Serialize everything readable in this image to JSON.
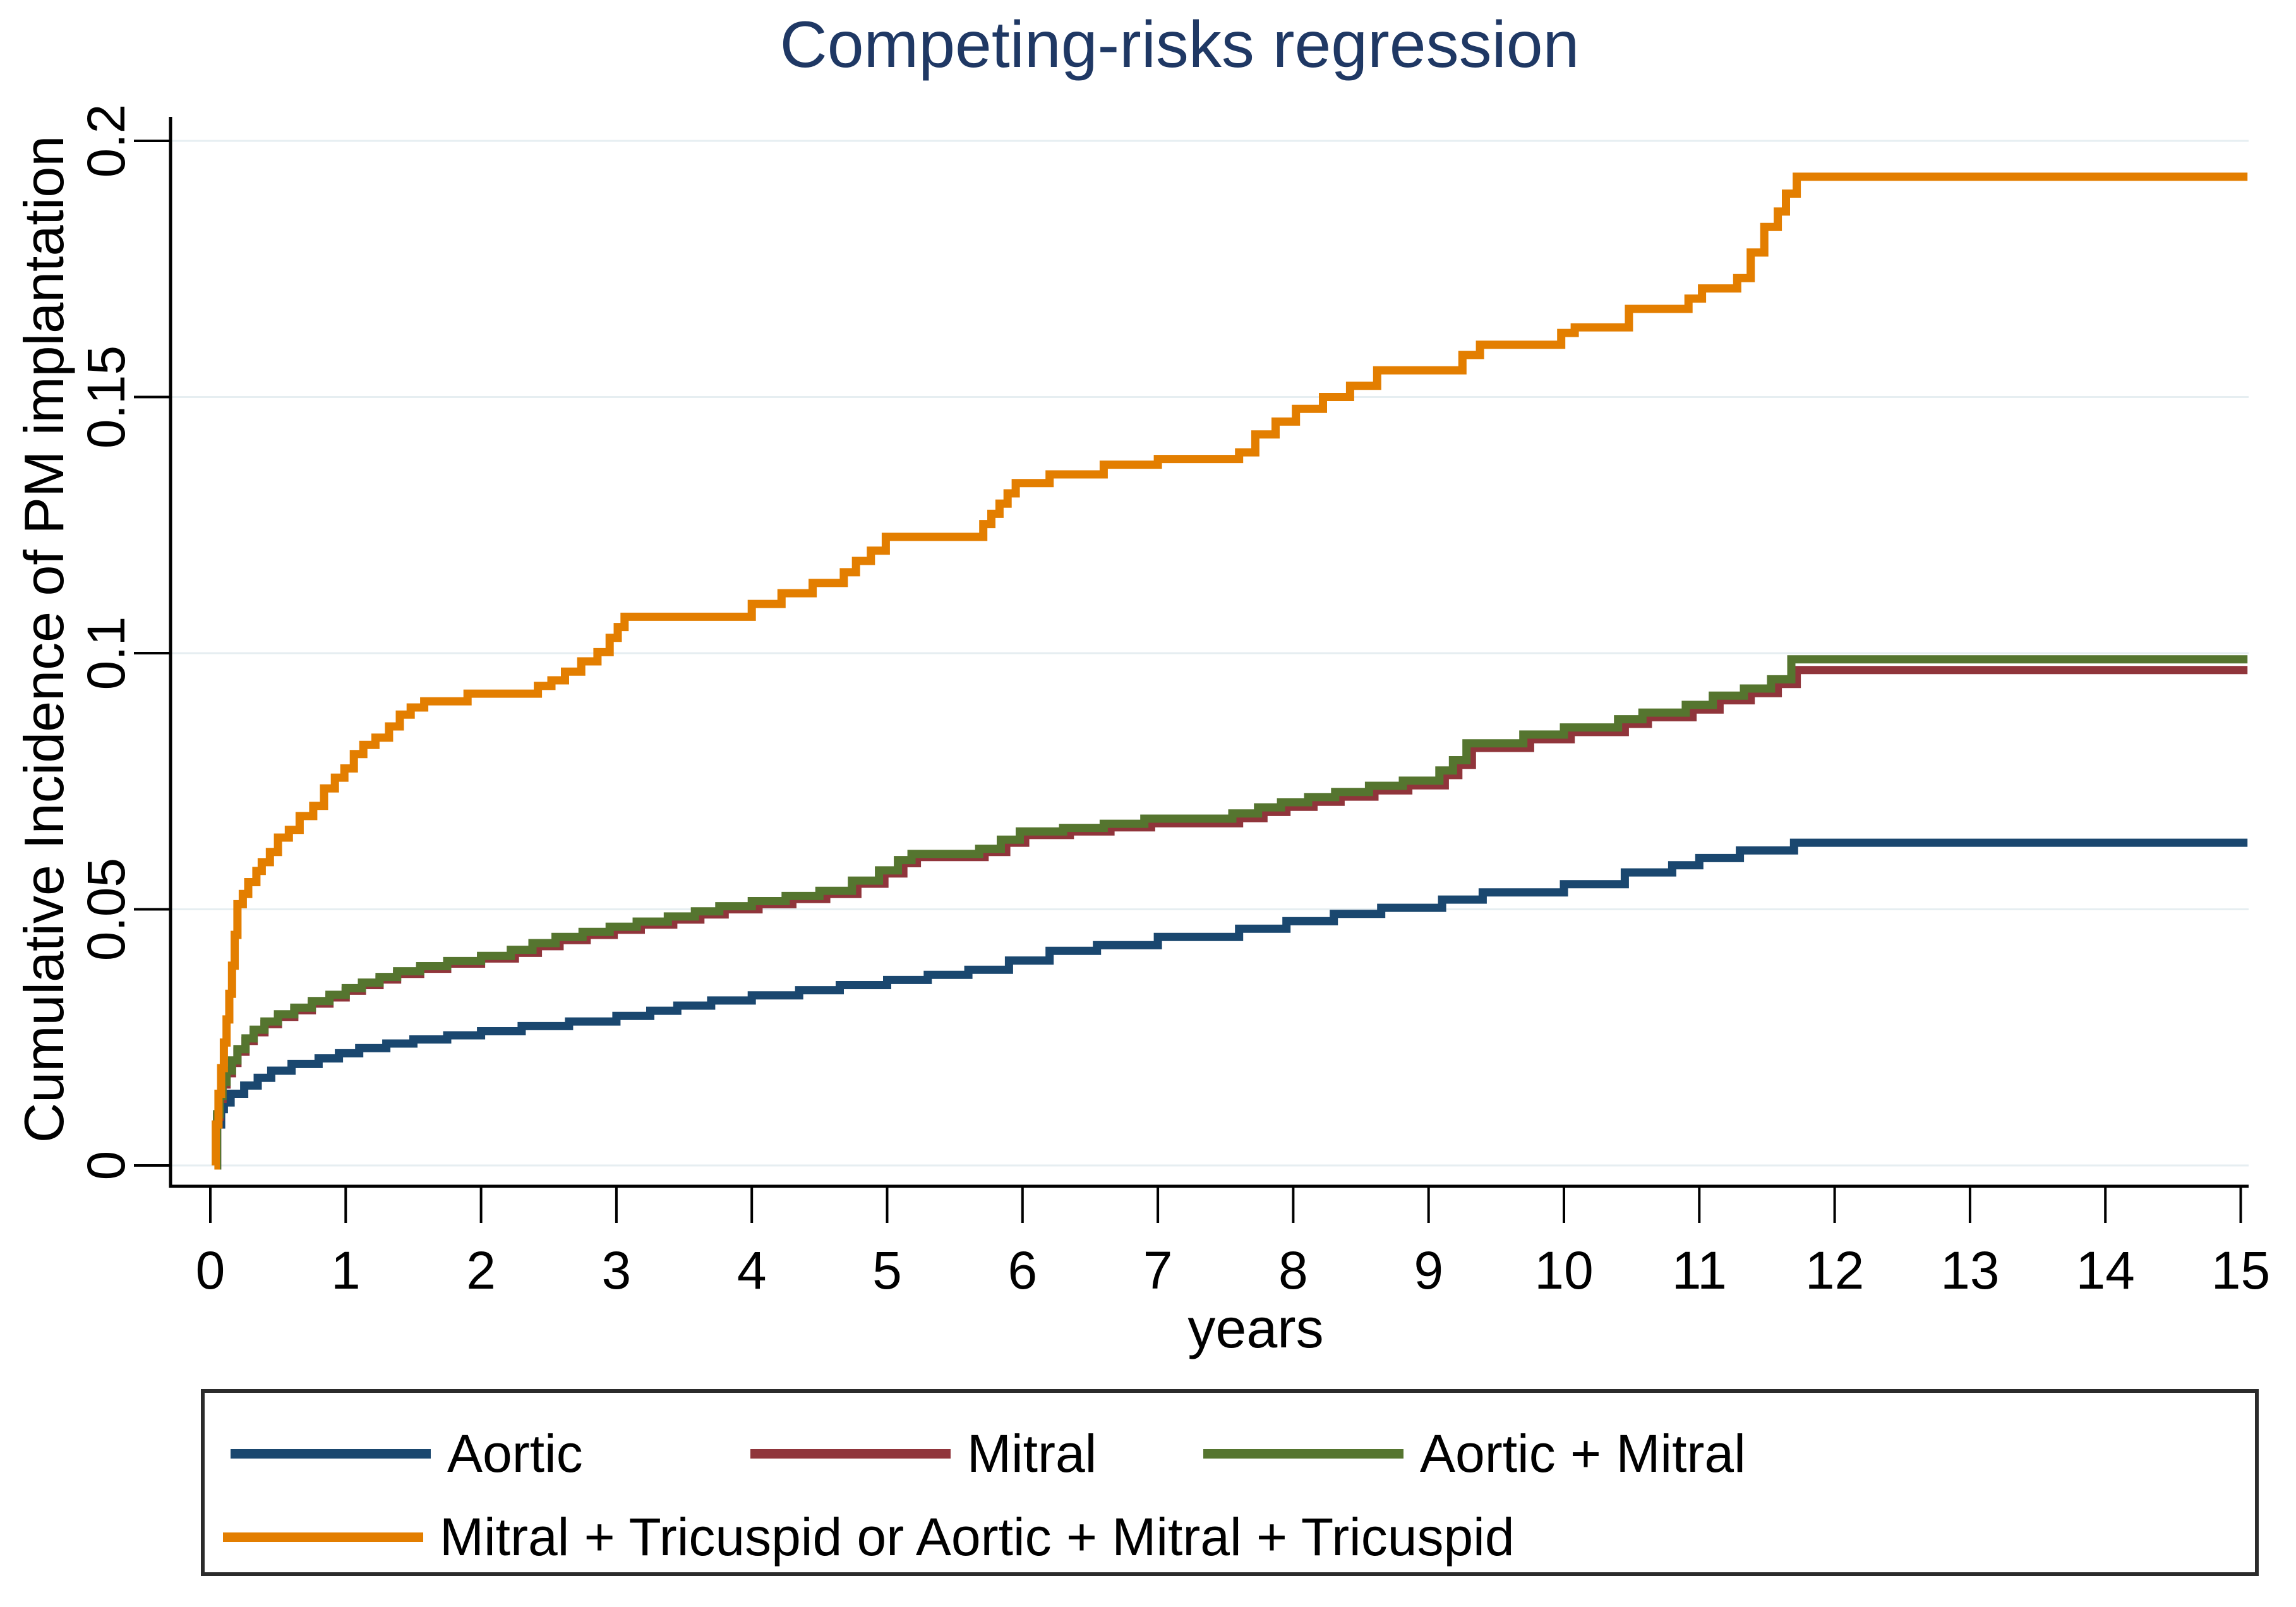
{
  "chart_data": {
    "type": "line",
    "subtype": "step-after cumulative incidence (competing-risks regression)",
    "title": "Competing-risks regression",
    "xlabel": "years",
    "ylabel": "Cumulative Incidence of PM implantation",
    "xlim": [
      0,
      15
    ],
    "ylim": [
      0,
      0.2
    ],
    "xticks": [
      "0",
      "1",
      "2",
      "3",
      "4",
      "5",
      "6",
      "7",
      "8",
      "9",
      "10",
      "11",
      "12",
      "13",
      "14",
      "15"
    ],
    "yticks": [
      {
        "v": 0,
        "label": "0"
      },
      {
        "v": 0.05,
        "label": "0.05"
      },
      {
        "v": 0.1,
        "label": "0.1"
      },
      {
        "v": 0.15,
        "label": "0.15"
      },
      {
        "v": 0.2,
        "label": "0.2"
      }
    ],
    "grid": "horizontal, light blue-gray, on",
    "ytick_label_rotation": -90,
    "legend_position": "boxed, below x-axis, two rows",
    "colors": {
      "title": "#1f3864",
      "axis": "#000000",
      "grid": "#e6eef1",
      "legend_border": "#2b2b2b",
      "background": "#ffffff"
    },
    "series": [
      {
        "name": "Aortic",
        "color": "#1a476f",
        "final_value": 0.063,
        "points": [
          [
            0.04,
            0
          ],
          [
            0.05,
            0.008
          ],
          [
            0.08,
            0.011
          ],
          [
            0.1,
            0.0123
          ],
          [
            0.15,
            0.014
          ],
          [
            0.25,
            0.0156
          ],
          [
            0.35,
            0.0171
          ],
          [
            0.45,
            0.0185
          ],
          [
            0.6,
            0.0198
          ],
          [
            0.8,
            0.0209
          ],
          [
            0.95,
            0.0219
          ],
          [
            1.1,
            0.0229
          ],
          [
            1.3,
            0.0238
          ],
          [
            1.5,
            0.0246
          ],
          [
            1.75,
            0.0254
          ],
          [
            2.0,
            0.0262
          ],
          [
            2.3,
            0.0272
          ],
          [
            2.65,
            0.0281
          ],
          [
            3.0,
            0.0292
          ],
          [
            3.25,
            0.0302
          ],
          [
            3.45,
            0.0312
          ],
          [
            3.7,
            0.0322
          ],
          [
            4.0,
            0.0332
          ],
          [
            4.35,
            0.0342
          ],
          [
            4.65,
            0.0352
          ],
          [
            5.0,
            0.0362
          ],
          [
            5.3,
            0.0372
          ],
          [
            5.6,
            0.0382
          ],
          [
            5.9,
            0.04
          ],
          [
            6.2,
            0.0419
          ],
          [
            6.55,
            0.043
          ],
          [
            7.0,
            0.0446
          ],
          [
            7.6,
            0.0462
          ],
          [
            7.95,
            0.0477
          ],
          [
            8.3,
            0.0491
          ],
          [
            8.65,
            0.0503
          ],
          [
            9.1,
            0.0519
          ],
          [
            9.4,
            0.0533
          ],
          [
            10.0,
            0.0549
          ],
          [
            10.45,
            0.0572
          ],
          [
            10.8,
            0.0586
          ],
          [
            11.0,
            0.06
          ],
          [
            11.3,
            0.0615
          ],
          [
            11.7,
            0.063
          ],
          [
            15.05,
            0.063
          ]
        ]
      },
      {
        "name": "Mitral",
        "color": "#90353b",
        "final_value": 0.0967,
        "points": [
          [
            0.04,
            0
          ],
          [
            0.05,
            0.0095
          ],
          [
            0.07,
            0.013
          ],
          [
            0.09,
            0.0158
          ],
          [
            0.12,
            0.018
          ],
          [
            0.16,
            0.02
          ],
          [
            0.2,
            0.0222
          ],
          [
            0.26,
            0.0243
          ],
          [
            0.32,
            0.026
          ],
          [
            0.4,
            0.0276
          ],
          [
            0.5,
            0.029
          ],
          [
            0.62,
            0.0303
          ],
          [
            0.75,
            0.0316
          ],
          [
            0.88,
            0.0328
          ],
          [
            1.0,
            0.0341
          ],
          [
            1.12,
            0.0352
          ],
          [
            1.25,
            0.0363
          ],
          [
            1.38,
            0.0374
          ],
          [
            1.55,
            0.0384
          ],
          [
            1.75,
            0.0394
          ],
          [
            2.0,
            0.0404
          ],
          [
            2.25,
            0.0415
          ],
          [
            2.42,
            0.0428
          ],
          [
            2.58,
            0.044
          ],
          [
            2.78,
            0.045
          ],
          [
            2.98,
            0.046
          ],
          [
            3.18,
            0.047
          ],
          [
            3.42,
            0.048
          ],
          [
            3.62,
            0.049
          ],
          [
            3.8,
            0.05
          ],
          [
            4.05,
            0.051
          ],
          [
            4.3,
            0.052
          ],
          [
            4.55,
            0.053
          ],
          [
            4.78,
            0.055
          ],
          [
            4.98,
            0.057
          ],
          [
            5.12,
            0.059
          ],
          [
            5.22,
            0.0602
          ],
          [
            5.72,
            0.0612
          ],
          [
            5.88,
            0.063
          ],
          [
            6.02,
            0.0645
          ],
          [
            6.35,
            0.0652
          ],
          [
            6.65,
            0.066
          ],
          [
            6.95,
            0.0668
          ],
          [
            7.6,
            0.0678
          ],
          [
            7.78,
            0.069
          ],
          [
            7.95,
            0.07
          ],
          [
            8.15,
            0.071
          ],
          [
            8.35,
            0.072
          ],
          [
            8.6,
            0.0732
          ],
          [
            8.85,
            0.0742
          ],
          [
            9.12,
            0.0762
          ],
          [
            9.22,
            0.0782
          ],
          [
            9.32,
            0.0815
          ],
          [
            9.75,
            0.0832
          ],
          [
            10.05,
            0.0846
          ],
          [
            10.45,
            0.0862
          ],
          [
            10.62,
            0.0875
          ],
          [
            10.95,
            0.089
          ],
          [
            11.15,
            0.0908
          ],
          [
            11.38,
            0.0922
          ],
          [
            11.58,
            0.094
          ],
          [
            11.72,
            0.0967
          ],
          [
            15.05,
            0.0967
          ]
        ]
      },
      {
        "name": "Aortic + Mitral",
        "color": "#55752f",
        "final_value": 0.0988,
        "points": [
          [
            0.04,
            0
          ],
          [
            0.05,
            0.01
          ],
          [
            0.07,
            0.0136
          ],
          [
            0.09,
            0.0163
          ],
          [
            0.12,
            0.0185
          ],
          [
            0.16,
            0.0205
          ],
          [
            0.2,
            0.0227
          ],
          [
            0.26,
            0.0248
          ],
          [
            0.32,
            0.0265
          ],
          [
            0.4,
            0.0281
          ],
          [
            0.5,
            0.0295
          ],
          [
            0.62,
            0.0308
          ],
          [
            0.75,
            0.0321
          ],
          [
            0.88,
            0.0333
          ],
          [
            1.0,
            0.0346
          ],
          [
            1.12,
            0.0357
          ],
          [
            1.25,
            0.0368
          ],
          [
            1.38,
            0.0379
          ],
          [
            1.55,
            0.0389
          ],
          [
            1.75,
            0.0399
          ],
          [
            2.0,
            0.0409
          ],
          [
            2.22,
            0.0421
          ],
          [
            2.38,
            0.0434
          ],
          [
            2.55,
            0.0446
          ],
          [
            2.75,
            0.0456
          ],
          [
            2.95,
            0.0466
          ],
          [
            3.15,
            0.0476
          ],
          [
            3.38,
            0.0486
          ],
          [
            3.58,
            0.0496
          ],
          [
            3.76,
            0.0506
          ],
          [
            4.0,
            0.0516
          ],
          [
            4.25,
            0.0526
          ],
          [
            4.5,
            0.0536
          ],
          [
            4.74,
            0.0556
          ],
          [
            4.94,
            0.0576
          ],
          [
            5.08,
            0.0596
          ],
          [
            5.18,
            0.0608
          ],
          [
            5.68,
            0.0618
          ],
          [
            5.84,
            0.0636
          ],
          [
            5.98,
            0.0652
          ],
          [
            6.3,
            0.0659
          ],
          [
            6.6,
            0.0667
          ],
          [
            6.9,
            0.0677
          ],
          [
            7.55,
            0.0687
          ],
          [
            7.74,
            0.0699
          ],
          [
            7.91,
            0.0709
          ],
          [
            8.11,
            0.0719
          ],
          [
            8.31,
            0.0729
          ],
          [
            8.56,
            0.0741
          ],
          [
            8.81,
            0.0751
          ],
          [
            9.08,
            0.0771
          ],
          [
            9.18,
            0.0791
          ],
          [
            9.28,
            0.0824
          ],
          [
            9.7,
            0.0841
          ],
          [
            10.0,
            0.0855
          ],
          [
            10.4,
            0.0871
          ],
          [
            10.58,
            0.0884
          ],
          [
            10.9,
            0.0899
          ],
          [
            11.1,
            0.0917
          ],
          [
            11.33,
            0.0931
          ],
          [
            11.53,
            0.0949
          ],
          [
            11.68,
            0.0988
          ],
          [
            15.05,
            0.0988
          ]
        ]
      },
      {
        "name": "Mitral + Tricuspid or Aortic + Mitral + Tricuspid",
        "color": "#e37e00",
        "final_value": 0.193,
        "points": [
          [
            0.03,
            0
          ],
          [
            0.04,
            0.008
          ],
          [
            0.06,
            0.014
          ],
          [
            0.08,
            0.019
          ],
          [
            0.1,
            0.024
          ],
          [
            0.12,
            0.0285
          ],
          [
            0.14,
            0.0335
          ],
          [
            0.16,
            0.039
          ],
          [
            0.18,
            0.045
          ],
          [
            0.2,
            0.051
          ],
          [
            0.24,
            0.053
          ],
          [
            0.28,
            0.0553
          ],
          [
            0.34,
            0.0575
          ],
          [
            0.38,
            0.0592
          ],
          [
            0.44,
            0.0612
          ],
          [
            0.5,
            0.064
          ],
          [
            0.58,
            0.0655
          ],
          [
            0.66,
            0.0682
          ],
          [
            0.76,
            0.0702
          ],
          [
            0.84,
            0.0736
          ],
          [
            0.92,
            0.0757
          ],
          [
            0.99,
            0.0775
          ],
          [
            1.06,
            0.0803
          ],
          [
            1.13,
            0.0821
          ],
          [
            1.22,
            0.0835
          ],
          [
            1.32,
            0.0857
          ],
          [
            1.4,
            0.088
          ],
          [
            1.48,
            0.0894
          ],
          [
            1.58,
            0.0906
          ],
          [
            1.9,
            0.0921
          ],
          [
            2.42,
            0.0936
          ],
          [
            2.52,
            0.0947
          ],
          [
            2.62,
            0.0964
          ],
          [
            2.74,
            0.0984
          ],
          [
            2.86,
            0.1002
          ],
          [
            2.95,
            0.103
          ],
          [
            3.01,
            0.1051
          ],
          [
            3.06,
            0.1071
          ],
          [
            4.0,
            0.1096
          ],
          [
            4.22,
            0.1117
          ],
          [
            4.45,
            0.1137
          ],
          [
            4.68,
            0.1158
          ],
          [
            4.77,
            0.118
          ],
          [
            4.88,
            0.12
          ],
          [
            4.99,
            0.1227
          ],
          [
            5.71,
            0.1252
          ],
          [
            5.77,
            0.1272
          ],
          [
            5.83,
            0.1292
          ],
          [
            5.89,
            0.1312
          ],
          [
            5.95,
            0.1332
          ],
          [
            6.2,
            0.1349
          ],
          [
            6.6,
            0.1368
          ],
          [
            7.0,
            0.1379
          ],
          [
            7.6,
            0.1392
          ],
          [
            7.72,
            0.1427
          ],
          [
            7.87,
            0.1452
          ],
          [
            8.02,
            0.1477
          ],
          [
            8.22,
            0.15
          ],
          [
            8.42,
            0.1522
          ],
          [
            8.62,
            0.1552
          ],
          [
            9.25,
            0.1582
          ],
          [
            9.38,
            0.1602
          ],
          [
            9.98,
            0.1625
          ],
          [
            10.08,
            0.1636
          ],
          [
            10.48,
            0.1672
          ],
          [
            10.92,
            0.1692
          ],
          [
            11.02,
            0.1712
          ],
          [
            11.28,
            0.1732
          ],
          [
            11.38,
            0.1782
          ],
          [
            11.48,
            0.1832
          ],
          [
            11.58,
            0.1862
          ],
          [
            11.64,
            0.1897
          ],
          [
            11.72,
            0.193
          ],
          [
            15.05,
            0.193
          ]
        ]
      }
    ]
  }
}
